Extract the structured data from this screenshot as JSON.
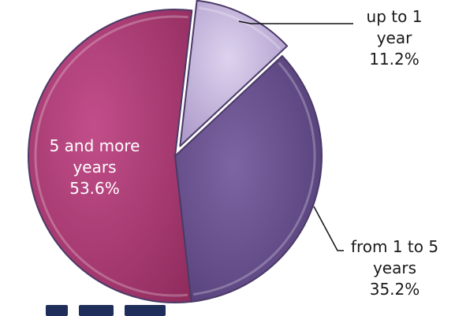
{
  "chart_data": {
    "type": "pie",
    "exploded": true,
    "slices": [
      {
        "label": "up to 1 year",
        "label_lines": [
          "up to 1",
          "year"
        ],
        "value": 11.2,
        "value_text": "11.2%",
        "color": "#c4b4dc"
      },
      {
        "label": "from 1 to 5 years",
        "label_lines": [
          "from 1 to 5",
          "years"
        ],
        "value": 35.2,
        "value_text": "35.2%",
        "color": "#6c5290"
      },
      {
        "label": "5 and more years",
        "label_lines": [
          "5 and more",
          "years"
        ],
        "value": 53.6,
        "value_text": "53.6%",
        "color": "#b23d7a"
      }
    ]
  },
  "colors": {
    "slice_border": "#4a3a66",
    "leader_line": "#111111",
    "background": "#ffffff"
  }
}
